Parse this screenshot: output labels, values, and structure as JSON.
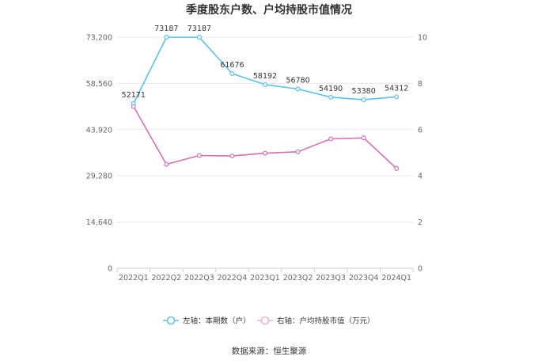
{
  "chart_data": {
    "type": "line",
    "title": "季度股东户数、户均持股市值情况",
    "categories": [
      "2022Q1",
      "2022Q2",
      "2022Q3",
      "2022Q4",
      "2023Q1",
      "2023Q2",
      "2023Q3",
      "2023Q4",
      "2024Q1"
    ],
    "left_axis": {
      "ylim": [
        0,
        73200
      ],
      "ticks": [
        "0",
        "14,640",
        "29,280",
        "43,920",
        "58,560",
        "73,200"
      ],
      "tick_values": [
        0,
        14640,
        29280,
        43920,
        58560,
        73200
      ]
    },
    "right_axis": {
      "ylim": [
        0,
        10
      ],
      "ticks": [
        "0",
        "2",
        "4",
        "6",
        "8",
        "10"
      ],
      "tick_values": [
        0,
        2,
        4,
        6,
        8,
        10
      ]
    },
    "series": [
      {
        "name": "左轴：本期数（户）",
        "axis": "left",
        "color": "#5bc0eb",
        "values": [
          52171,
          73187,
          73187,
          61676,
          58192,
          56780,
          54190,
          53380,
          54312
        ],
        "labels": [
          "52171",
          "73187",
          "73187",
          "61676",
          "58192",
          "56780",
          "54190",
          "53380",
          "54312"
        ]
      },
      {
        "name": "右轴：户均持股市值（万元）",
        "axis": "right",
        "color": "#d36fb4",
        "values": [
          7.0,
          4.5,
          4.88,
          4.86,
          4.98,
          5.04,
          5.6,
          5.64,
          4.32
        ]
      }
    ],
    "grid": true,
    "legend_position": "bottom",
    "source": "数据来源：恒生聚源"
  }
}
